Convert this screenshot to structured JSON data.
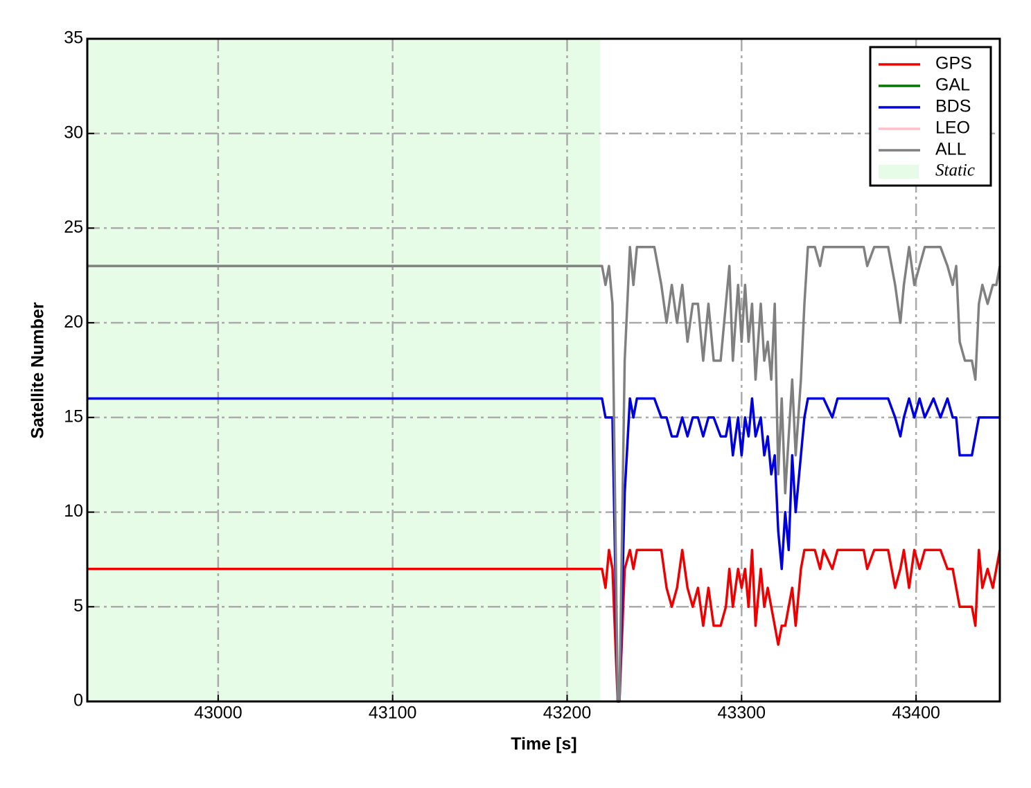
{
  "chart_data": {
    "type": "line",
    "xlabel": "Time [s]",
    "ylabel": "Satellite Number",
    "xlim": [
      42925,
      43448
    ],
    "ylim": [
      0,
      35
    ],
    "xticks": [
      43000,
      43100,
      43200,
      43300,
      43400
    ],
    "yticks": [
      0,
      5,
      10,
      15,
      20,
      25,
      30,
      35
    ],
    "grid": true,
    "legend": "upper right",
    "shade": {
      "name": "Static",
      "xrange": [
        42925,
        43219
      ],
      "color": "#e6fce6"
    },
    "x": [
      42925,
      43220,
      43222,
      43224,
      43226,
      43229,
      43230,
      43233,
      43236,
      43238,
      43240,
      43245,
      43250,
      43254,
      43257,
      43260,
      43263,
      43266,
      43269,
      43272,
      43275,
      43278,
      43281,
      43284,
      43288,
      43291,
      43293,
      43295,
      43298,
      43300,
      43302,
      43304,
      43306,
      43308,
      43311,
      43313,
      43315,
      43317,
      43319,
      43321,
      43323,
      43325,
      43327,
      43329,
      43331,
      43334,
      43336,
      43338,
      43342,
      43345,
      43347,
      43352,
      43355,
      43370,
      43372,
      43376,
      43384,
      43388,
      43391,
      43393,
      43396,
      43399,
      43402,
      43405,
      43410,
      43414,
      43418,
      43421,
      43423,
      43425,
      43428,
      43432,
      43434,
      43436,
      43438,
      43441,
      43444,
      43446,
      43448
    ],
    "series": [
      {
        "name": "GPS",
        "color": "#ee0000",
        "values": [
          7,
          7,
          6,
          8,
          7,
          0,
          0,
          7,
          8,
          7,
          8,
          8,
          8,
          8,
          6,
          5,
          6,
          8,
          6,
          5,
          6,
          4,
          6,
          4,
          4,
          5,
          7,
          5,
          7,
          6,
          7,
          5,
          8,
          4,
          7,
          5,
          6,
          5,
          4,
          3,
          4,
          4,
          5,
          6,
          4,
          7,
          8,
          8,
          8,
          7,
          8,
          7,
          8,
          8,
          7,
          8,
          8,
          6,
          7,
          8,
          6,
          8,
          7,
          8,
          8,
          8,
          7,
          7,
          6,
          5,
          5,
          5,
          4,
          8,
          6,
          7,
          6,
          7,
          8
        ]
      },
      {
        "name": "GAL",
        "color": "#007700",
        "values": [
          null,
          null,
          null,
          null,
          null,
          null,
          null,
          null,
          null,
          null,
          null,
          null,
          null,
          null,
          null,
          null,
          null,
          null,
          null,
          null,
          null,
          null,
          null,
          null,
          null,
          null,
          null,
          null,
          null,
          null,
          null,
          null,
          null,
          null,
          null,
          null,
          null,
          null,
          null,
          null,
          null,
          null,
          null,
          null,
          null,
          null,
          null,
          null,
          null,
          null,
          null,
          null,
          null,
          null,
          null,
          null,
          null,
          null,
          null,
          null,
          null,
          null,
          null,
          null,
          null,
          null,
          null,
          null,
          null,
          null,
          null,
          null,
          null,
          null,
          null,
          null,
          null,
          null,
          null
        ]
      },
      {
        "name": "BDS",
        "color": "#0000dd",
        "values": [
          16,
          16,
          15,
          15,
          15,
          0,
          0,
          11,
          16,
          15,
          16,
          16,
          16,
          15,
          15,
          14,
          14,
          15,
          14,
          15,
          15,
          14,
          15,
          15,
          14,
          14,
          15,
          13,
          15,
          13,
          15,
          14,
          16,
          14,
          15,
          13,
          14,
          12,
          13,
          9,
          7,
          10,
          8,
          13,
          10,
          13,
          15,
          16,
          16,
          16,
          16,
          15,
          16,
          16,
          16,
          16,
          16,
          15,
          14,
          15,
          16,
          15,
          16,
          15,
          16,
          15,
          16,
          15,
          15,
          13,
          13,
          13,
          14,
          15,
          15,
          15,
          15,
          15,
          15
        ]
      },
      {
        "name": "LEO",
        "color": "#ffc0cb",
        "values": [
          null,
          null,
          null,
          null,
          null,
          null,
          null,
          null,
          null,
          null,
          null,
          null,
          null,
          null,
          null,
          null,
          null,
          null,
          null,
          null,
          null,
          null,
          null,
          null,
          null,
          null,
          null,
          null,
          null,
          null,
          null,
          null,
          null,
          null,
          null,
          null,
          null,
          null,
          null,
          null,
          null,
          null,
          null,
          null,
          null,
          null,
          null,
          null,
          null,
          null,
          null,
          null,
          null,
          null,
          null,
          null,
          null,
          null,
          null,
          null,
          null,
          null,
          null,
          null,
          null,
          null,
          null,
          null,
          null,
          null,
          null,
          null,
          null,
          null,
          null,
          null,
          null,
          null,
          null
        ]
      },
      {
        "name": "ALL",
        "color": "#808080",
        "values": [
          23,
          23,
          22,
          23,
          21,
          0,
          0,
          18,
          24,
          22,
          24,
          24,
          24,
          22,
          20,
          22,
          20,
          22,
          19,
          21,
          21,
          18,
          21,
          18,
          18,
          21,
          23,
          18,
          22,
          19,
          22,
          19,
          21,
          17,
          21,
          18,
          19,
          17,
          21,
          12,
          16,
          11,
          14,
          17,
          13,
          17,
          21,
          24,
          24,
          23,
          24,
          24,
          24,
          24,
          23,
          24,
          24,
          22,
          20,
          22,
          24,
          22,
          23,
          24,
          24,
          24,
          23,
          22,
          23,
          19,
          18,
          18,
          17,
          21,
          22,
          21,
          22,
          22,
          23
        ]
      }
    ]
  }
}
